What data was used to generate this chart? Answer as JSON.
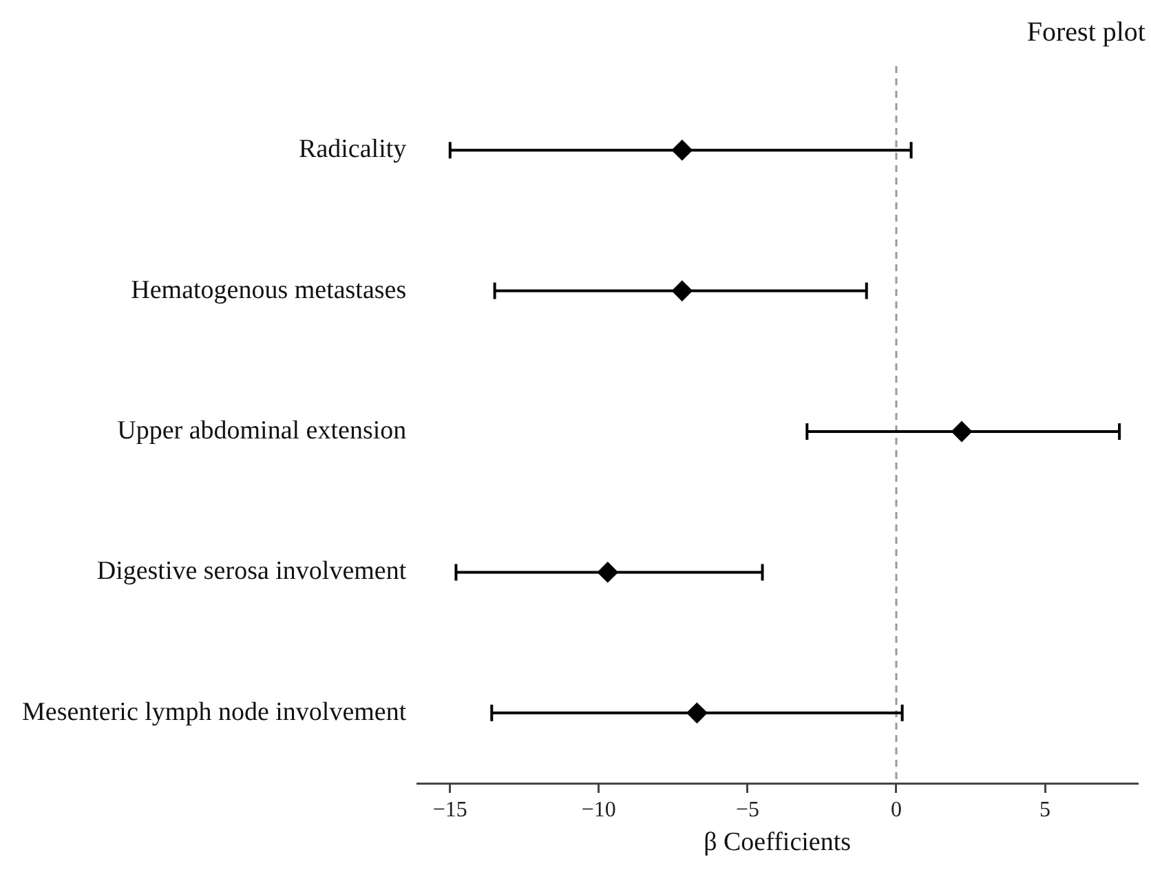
{
  "chart_data": {
    "type": "scatter",
    "orientation": "horizontal",
    "title": "Forest plot",
    "xlabel": "β Coefficients",
    "categories": [
      "Radicality",
      "Hematogenous metastases",
      "Upper abdominal extension",
      "Digestive serosa involvement",
      "Mesenteric lymph node involvement"
    ],
    "values": [
      -7.2,
      -7.2,
      2.2,
      -9.7,
      -6.7
    ],
    "errors": [
      [
        -15.0,
        0.5
      ],
      [
        -13.5,
        -1.0
      ],
      [
        -3.0,
        7.5
      ],
      [
        -14.8,
        -4.5
      ],
      [
        -13.6,
        0.2
      ]
    ],
    "color": "#000000",
    "marker": "diamond",
    "xlim": [
      -16.1,
      8.1
    ],
    "xticks": [
      {
        "value": -15,
        "label": "−15"
      },
      {
        "value": -10,
        "label": "−10"
      },
      {
        "value": -5,
        "label": "−5"
      },
      0,
      5
    ],
    "ref_lines": [
      {
        "axis": "x",
        "value": 0,
        "color": "#999999",
        "line_style": "dashed"
      }
    ],
    "grid": false,
    "legend": false
  }
}
